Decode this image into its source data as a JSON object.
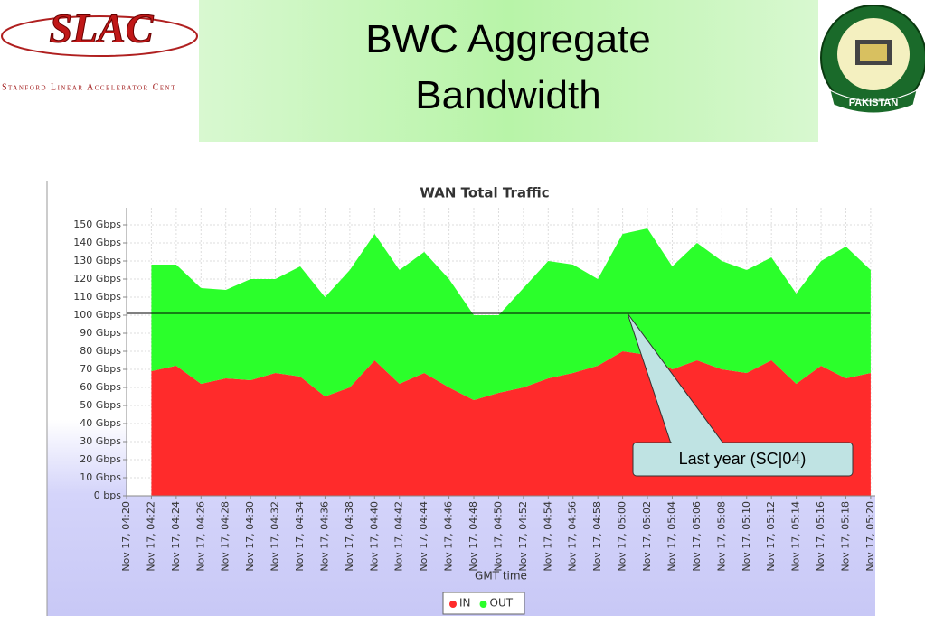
{
  "slide": {
    "title": "BWC Aggregate Bandwidth",
    "logo_left": "SLAC",
    "logo_left_caption": "Stanford Linear Accelerator Cent",
    "logo_right_caption": "PAKISTAN"
  },
  "chart_data": {
    "type": "stacked-area",
    "title": "WAN Total Traffic",
    "xlabel": "GMT time",
    "categories": [
      "Nov 17, 04:20",
      "Nov 17, 04:22",
      "Nov 17, 04:24",
      "Nov 17, 04:26",
      "Nov 17, 04:28",
      "Nov 17, 04:30",
      "Nov 17, 04:32",
      "Nov 17, 04:34",
      "Nov 17, 04:36",
      "Nov 17, 04:38",
      "Nov 17, 04:40",
      "Nov 17, 04:42",
      "Nov 17, 04:44",
      "Nov 17, 04:46",
      "Nov 17, 04:48",
      "Nov 17, 04:50",
      "Nov 17, 04:52",
      "Nov 17, 04:54",
      "Nov 17, 04:56",
      "Nov 17, 04:58",
      "Nov 17, 05:00",
      "Nov 17, 05:02",
      "Nov 17, 05:04",
      "Nov 17, 05:06",
      "Nov 17, 05:08",
      "Nov 17, 05:10",
      "Nov 17, 05:12",
      "Nov 17, 05:14",
      "Nov 17, 05:16",
      "Nov 17, 05:18",
      "Nov 17, 05:20"
    ],
    "series": [
      {
        "name": "IN",
        "color": "#ff2b2b",
        "values": [
          null,
          69,
          72,
          62,
          65,
          64,
          68,
          66,
          55,
          60,
          75,
          62,
          68,
          60,
          53,
          57,
          60,
          65,
          68,
          72,
          80,
          78,
          70,
          75,
          70,
          68,
          75,
          62,
          72,
          65,
          68
        ]
      },
      {
        "name": "OUT",
        "color": "#2bff2b",
        "values": [
          null,
          59,
          56,
          53,
          49,
          56,
          52,
          61,
          55,
          65,
          70,
          63,
          67,
          60,
          47,
          43,
          55,
          65,
          60,
          48,
          65,
          70,
          57,
          65,
          60,
          57,
          57,
          50,
          58,
          73,
          57
        ]
      }
    ],
    "ylim": [
      0,
      159.5
    ],
    "yticks": [
      {
        "value": 0,
        "label": "0 bps"
      },
      {
        "value": 10,
        "label": "10 Gbps"
      },
      {
        "value": 20,
        "label": "20 Gbps"
      },
      {
        "value": 30,
        "label": "30 Gbps"
      },
      {
        "value": 40,
        "label": "40 Gbps"
      },
      {
        "value": 50,
        "label": "50 Gbps"
      },
      {
        "value": 60,
        "label": "60 Gbps"
      },
      {
        "value": 70,
        "label": "70 Gbps"
      },
      {
        "value": 80,
        "label": "80 Gbps"
      },
      {
        "value": 90,
        "label": "90 Gbps"
      },
      {
        "value": 100,
        "label": "100 Gbps"
      },
      {
        "value": 110,
        "label": "110 Gbps"
      },
      {
        "value": 120,
        "label": "120 Gbps"
      },
      {
        "value": 130,
        "label": "130 Gbps"
      },
      {
        "value": 140,
        "label": "140 Gbps"
      },
      {
        "value": 150,
        "label": "150 Gbps"
      }
    ],
    "grid": true,
    "reference_line": 101,
    "annotation": "Last year (SC|04)",
    "legend": "bottom"
  }
}
